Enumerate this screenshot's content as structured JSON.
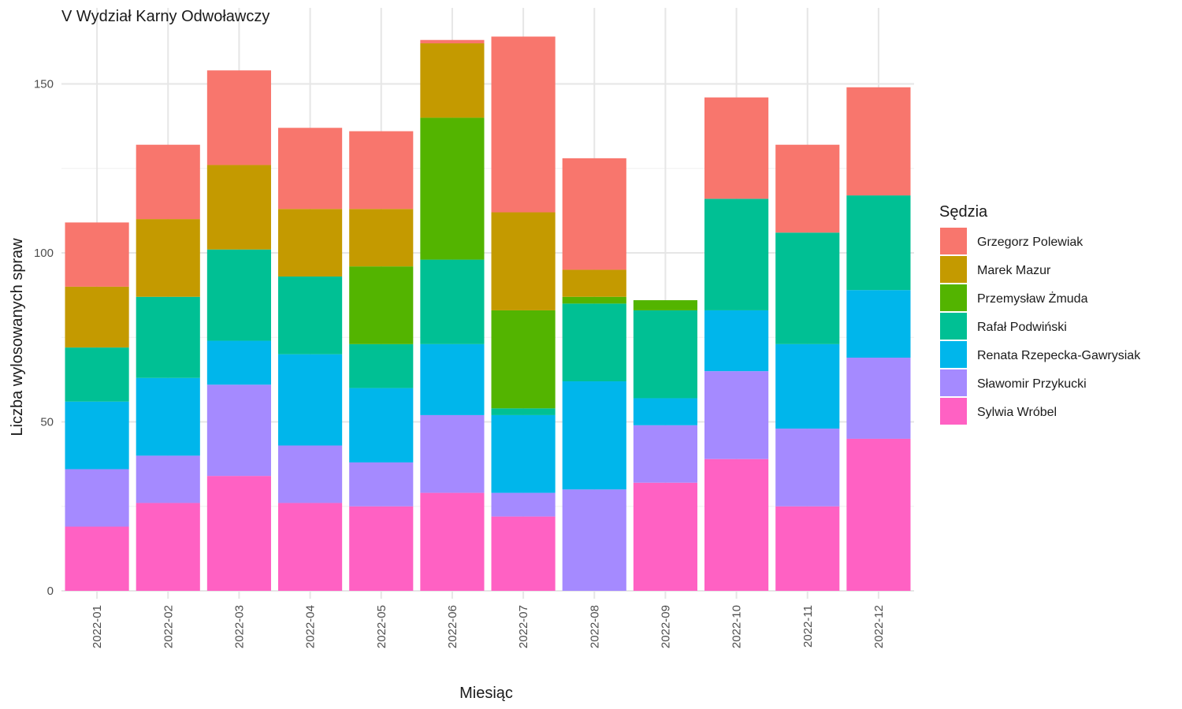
{
  "chart_data": {
    "type": "bar",
    "stacked": true,
    "title": "V Wydział Karny Odwoławczy",
    "xlabel": "Miesiąc",
    "ylabel": "Liczba wylosowanych spraw",
    "ylim": [
      0,
      166
    ],
    "yticks": [
      0,
      50,
      100,
      150
    ],
    "grid": true,
    "legend_title": "Sędzia",
    "legend_position": "right",
    "categories": [
      "2022-01",
      "2022-02",
      "2022-03",
      "2022-04",
      "2022-05",
      "2022-06",
      "2022-07",
      "2022-08",
      "2022-09",
      "2022-10",
      "2022-11",
      "2022-12"
    ],
    "series": [
      {
        "name": "Sylwia Wróbel",
        "color": "#FF61C3",
        "values": [
          19,
          26,
          34,
          26,
          25,
          29,
          22,
          0,
          32,
          39,
          25,
          45
        ]
      },
      {
        "name": "Sławomir Przykucki",
        "color": "#A58AFF",
        "values": [
          17,
          14,
          27,
          17,
          13,
          23,
          7,
          30,
          17,
          26,
          23,
          24
        ]
      },
      {
        "name": "Renata Rzepecka-Gawrysiak",
        "color": "#00B6EB",
        "values": [
          20,
          23,
          13,
          27,
          22,
          21,
          23,
          32,
          8,
          18,
          25,
          20
        ]
      },
      {
        "name": "Rafał Podwiński",
        "color": "#00C094",
        "values": [
          16,
          24,
          27,
          23,
          13,
          25,
          2,
          23,
          26,
          33,
          33,
          28
        ]
      },
      {
        "name": "Przemysław Żmuda",
        "color": "#53B400",
        "values": [
          0,
          0,
          0,
          0,
          23,
          42,
          29,
          2,
          3,
          0,
          0,
          0
        ]
      },
      {
        "name": "Marek Mazur",
        "color": "#C49A00",
        "values": [
          18,
          23,
          25,
          20,
          17,
          22,
          29,
          8,
          0,
          0,
          0,
          0
        ]
      },
      {
        "name": "Grzegorz Polewiak",
        "color": "#F8766D",
        "values": [
          19,
          22,
          28,
          24,
          23,
          1,
          52,
          33,
          0,
          30,
          26,
          32
        ]
      }
    ],
    "legend_order": [
      "Grzegorz Polewiak",
      "Marek Mazur",
      "Przemysław Żmuda",
      "Rafał Podwiński",
      "Renata Rzepecka-Gawrysiak",
      "Sławomir Przykucki",
      "Sylwia Wróbel"
    ]
  }
}
